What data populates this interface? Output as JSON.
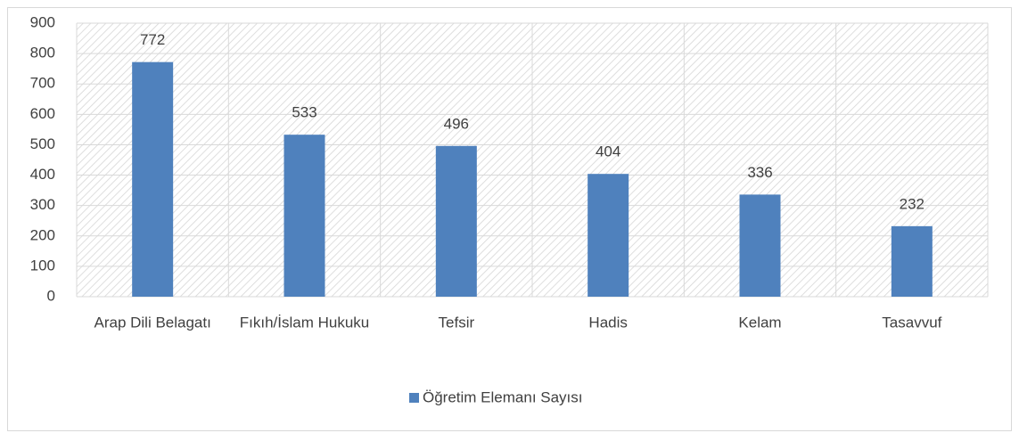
{
  "chart_data": {
    "type": "bar",
    "categories": [
      "Arap Dili Belagatı",
      "Fıkıh/İslam Hukuku",
      "Tefsir",
      "Hadis",
      "Kelam",
      "Tasavvuf"
    ],
    "series": [
      {
        "name": "Öğretim Elemanı Sayısı",
        "color": "#4f81bd",
        "values": [
          772,
          533,
          496,
          404,
          336,
          232
        ]
      }
    ],
    "ylim": [
      0,
      900
    ],
    "yticks": [
      0,
      100,
      200,
      300,
      400,
      500,
      600,
      700,
      800,
      900
    ],
    "grid": true,
    "legend": "bottom",
    "data_labels": true
  }
}
